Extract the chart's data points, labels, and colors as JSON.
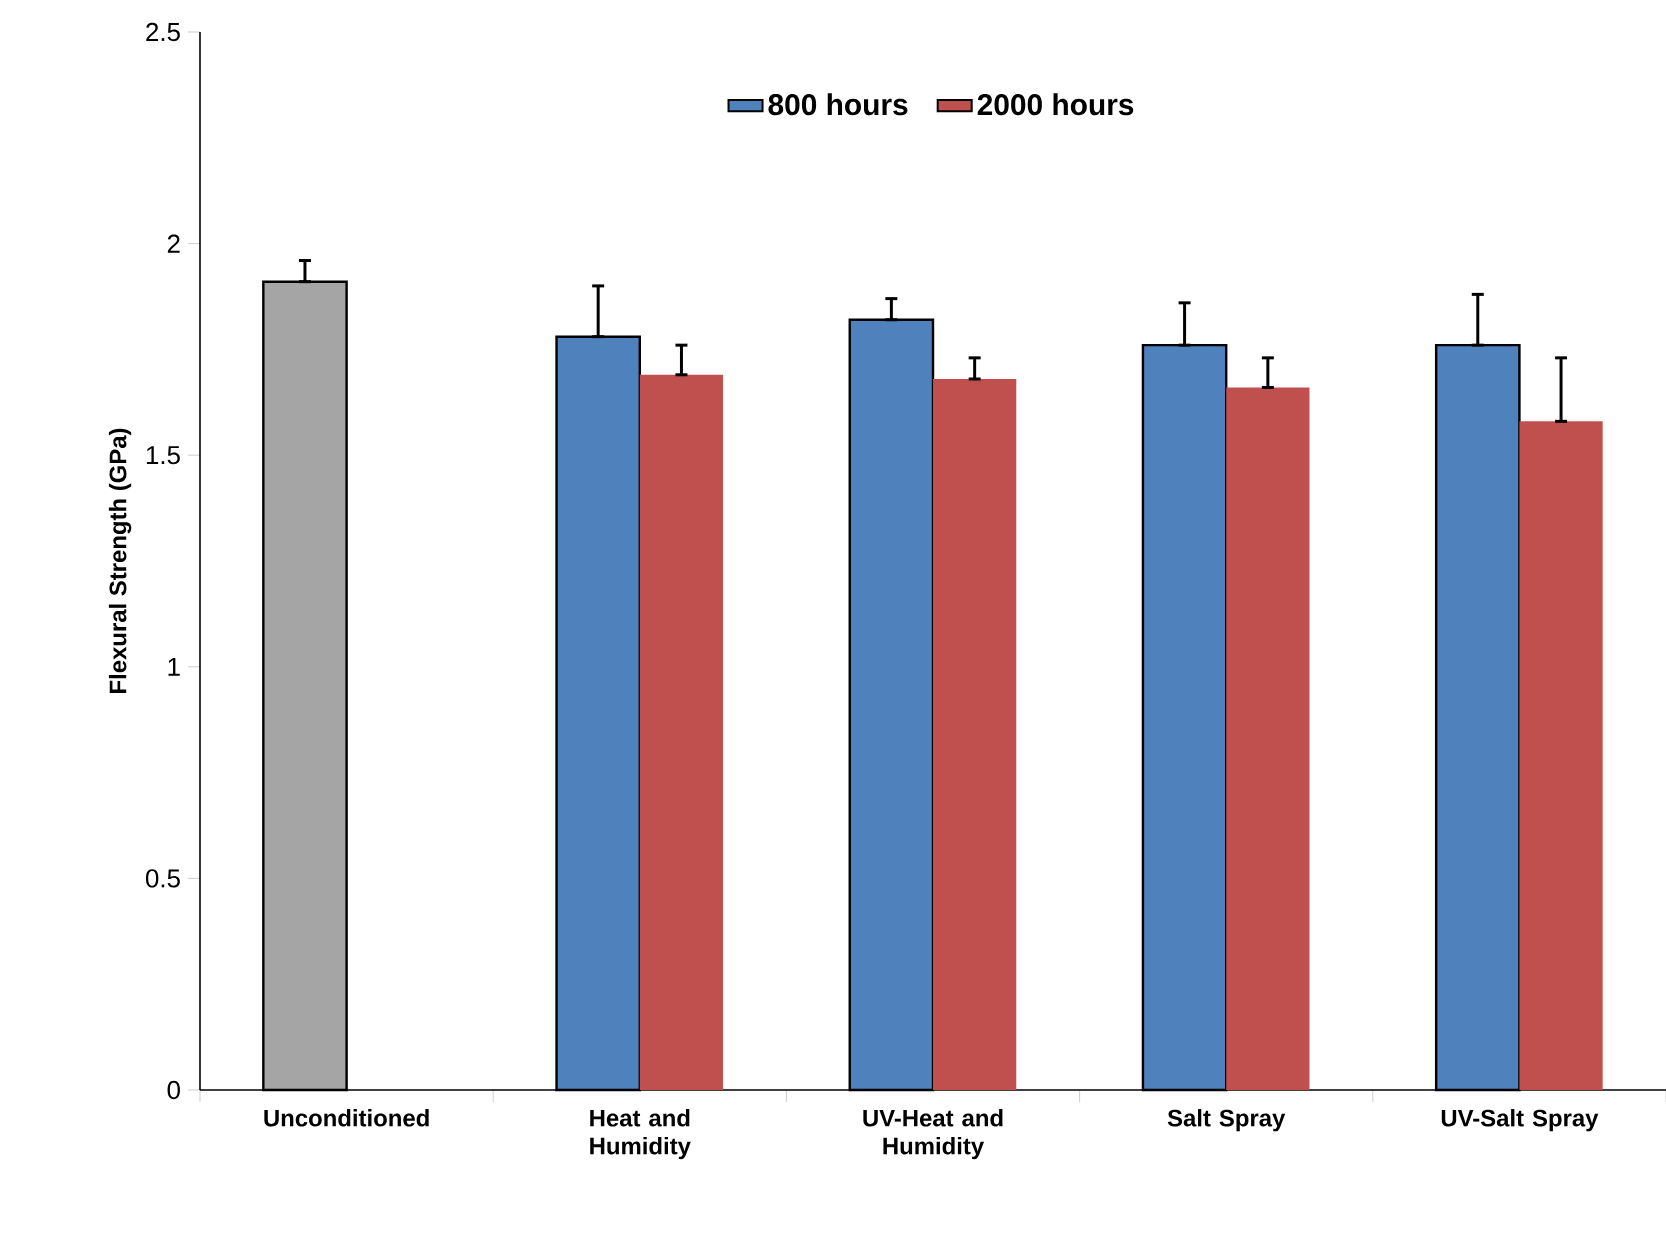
{
  "chart_data": {
    "type": "bar",
    "ylabel": "Flexural Strength (GPa)",
    "categories": [
      "Unconditioned",
      "Heat and Humidity",
      "UV-Heat and Humidity",
      "Salt Spray",
      "UV-Salt Spray"
    ],
    "series": [
      {
        "name": "800 hours",
        "color": "#4f81bd",
        "colors": [
          "#a5a5a5",
          "#4f81bd",
          "#4f81bd",
          "#4f81bd",
          "#4f81bd"
        ],
        "values": [
          1.91,
          1.78,
          1.82,
          1.76,
          1.76
        ],
        "errors": [
          [
            1.91,
            1.96
          ],
          [
            1.78,
            1.9
          ],
          [
            1.82,
            1.87
          ],
          [
            1.76,
            1.86
          ],
          [
            1.76,
            1.88
          ]
        ]
      },
      {
        "name": "2000 hours",
        "color": "#c0504d",
        "values": [
          null,
          1.69,
          1.68,
          1.66,
          1.58
        ],
        "errors": [
          null,
          [
            1.69,
            1.76
          ],
          [
            1.68,
            1.73
          ],
          [
            1.66,
            1.73
          ],
          [
            1.58,
            1.73
          ]
        ]
      }
    ],
    "ylim": [
      0,
      2.5
    ],
    "yticks": [
      0,
      0.5,
      1,
      1.5,
      2,
      2.5
    ],
    "legend": "top",
    "grid": false
  }
}
